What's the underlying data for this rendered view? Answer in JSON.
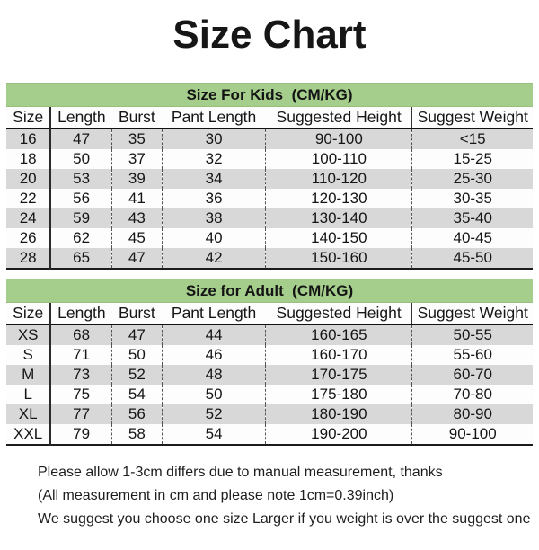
{
  "title": "Size Chart",
  "colors": {
    "section_header_green": "#a5ce8c",
    "row_stripe_gray": "#d8d8d8",
    "text": "#111111"
  },
  "sections": [
    {
      "id": "kids",
      "title": "Size For Kids  (CM/KG)",
      "columns": [
        "Size",
        "Length",
        "Burst",
        "Pant Length",
        "Suggested Height",
        "Suggest Weight"
      ],
      "rows": [
        [
          "16",
          "47",
          "35",
          "30",
          "90-100",
          "<15"
        ],
        [
          "18",
          "50",
          "37",
          "32",
          "100-110",
          "15-25"
        ],
        [
          "20",
          "53",
          "39",
          "34",
          "110-120",
          "25-30"
        ],
        [
          "22",
          "56",
          "41",
          "36",
          "120-130",
          "30-35"
        ],
        [
          "24",
          "59",
          "43",
          "38",
          "130-140",
          "35-40"
        ],
        [
          "26",
          "62",
          "45",
          "40",
          "140-150",
          "40-45"
        ],
        [
          "28",
          "65",
          "47",
          "42",
          "150-160",
          "45-50"
        ]
      ]
    },
    {
      "id": "adult",
      "title": "Size for Adult  (CM/KG)",
      "columns": [
        "Size",
        "Length",
        "Burst",
        "Pant Length",
        "Suggested Height",
        "Suggest Weight"
      ],
      "rows": [
        [
          "XS",
          "68",
          "47",
          "44",
          "160-165",
          "50-55"
        ],
        [
          "S",
          "71",
          "50",
          "46",
          "160-170",
          "55-60"
        ],
        [
          "M",
          "73",
          "52",
          "48",
          "170-175",
          "60-70"
        ],
        [
          "L",
          "75",
          "54",
          "50",
          "175-180",
          "70-80"
        ],
        [
          "XL",
          "77",
          "56",
          "52",
          "180-190",
          "80-90"
        ],
        [
          "XXL",
          "79",
          "58",
          "54",
          "190-200",
          "90-100"
        ]
      ]
    }
  ],
  "notes": [
    "Please allow 1-3cm differs due to manual measurement, thanks",
    "(All measurement in cm and please note 1cm=0.39inch)",
    "We suggest you choose one size Larger if you weight is over the suggest one"
  ]
}
